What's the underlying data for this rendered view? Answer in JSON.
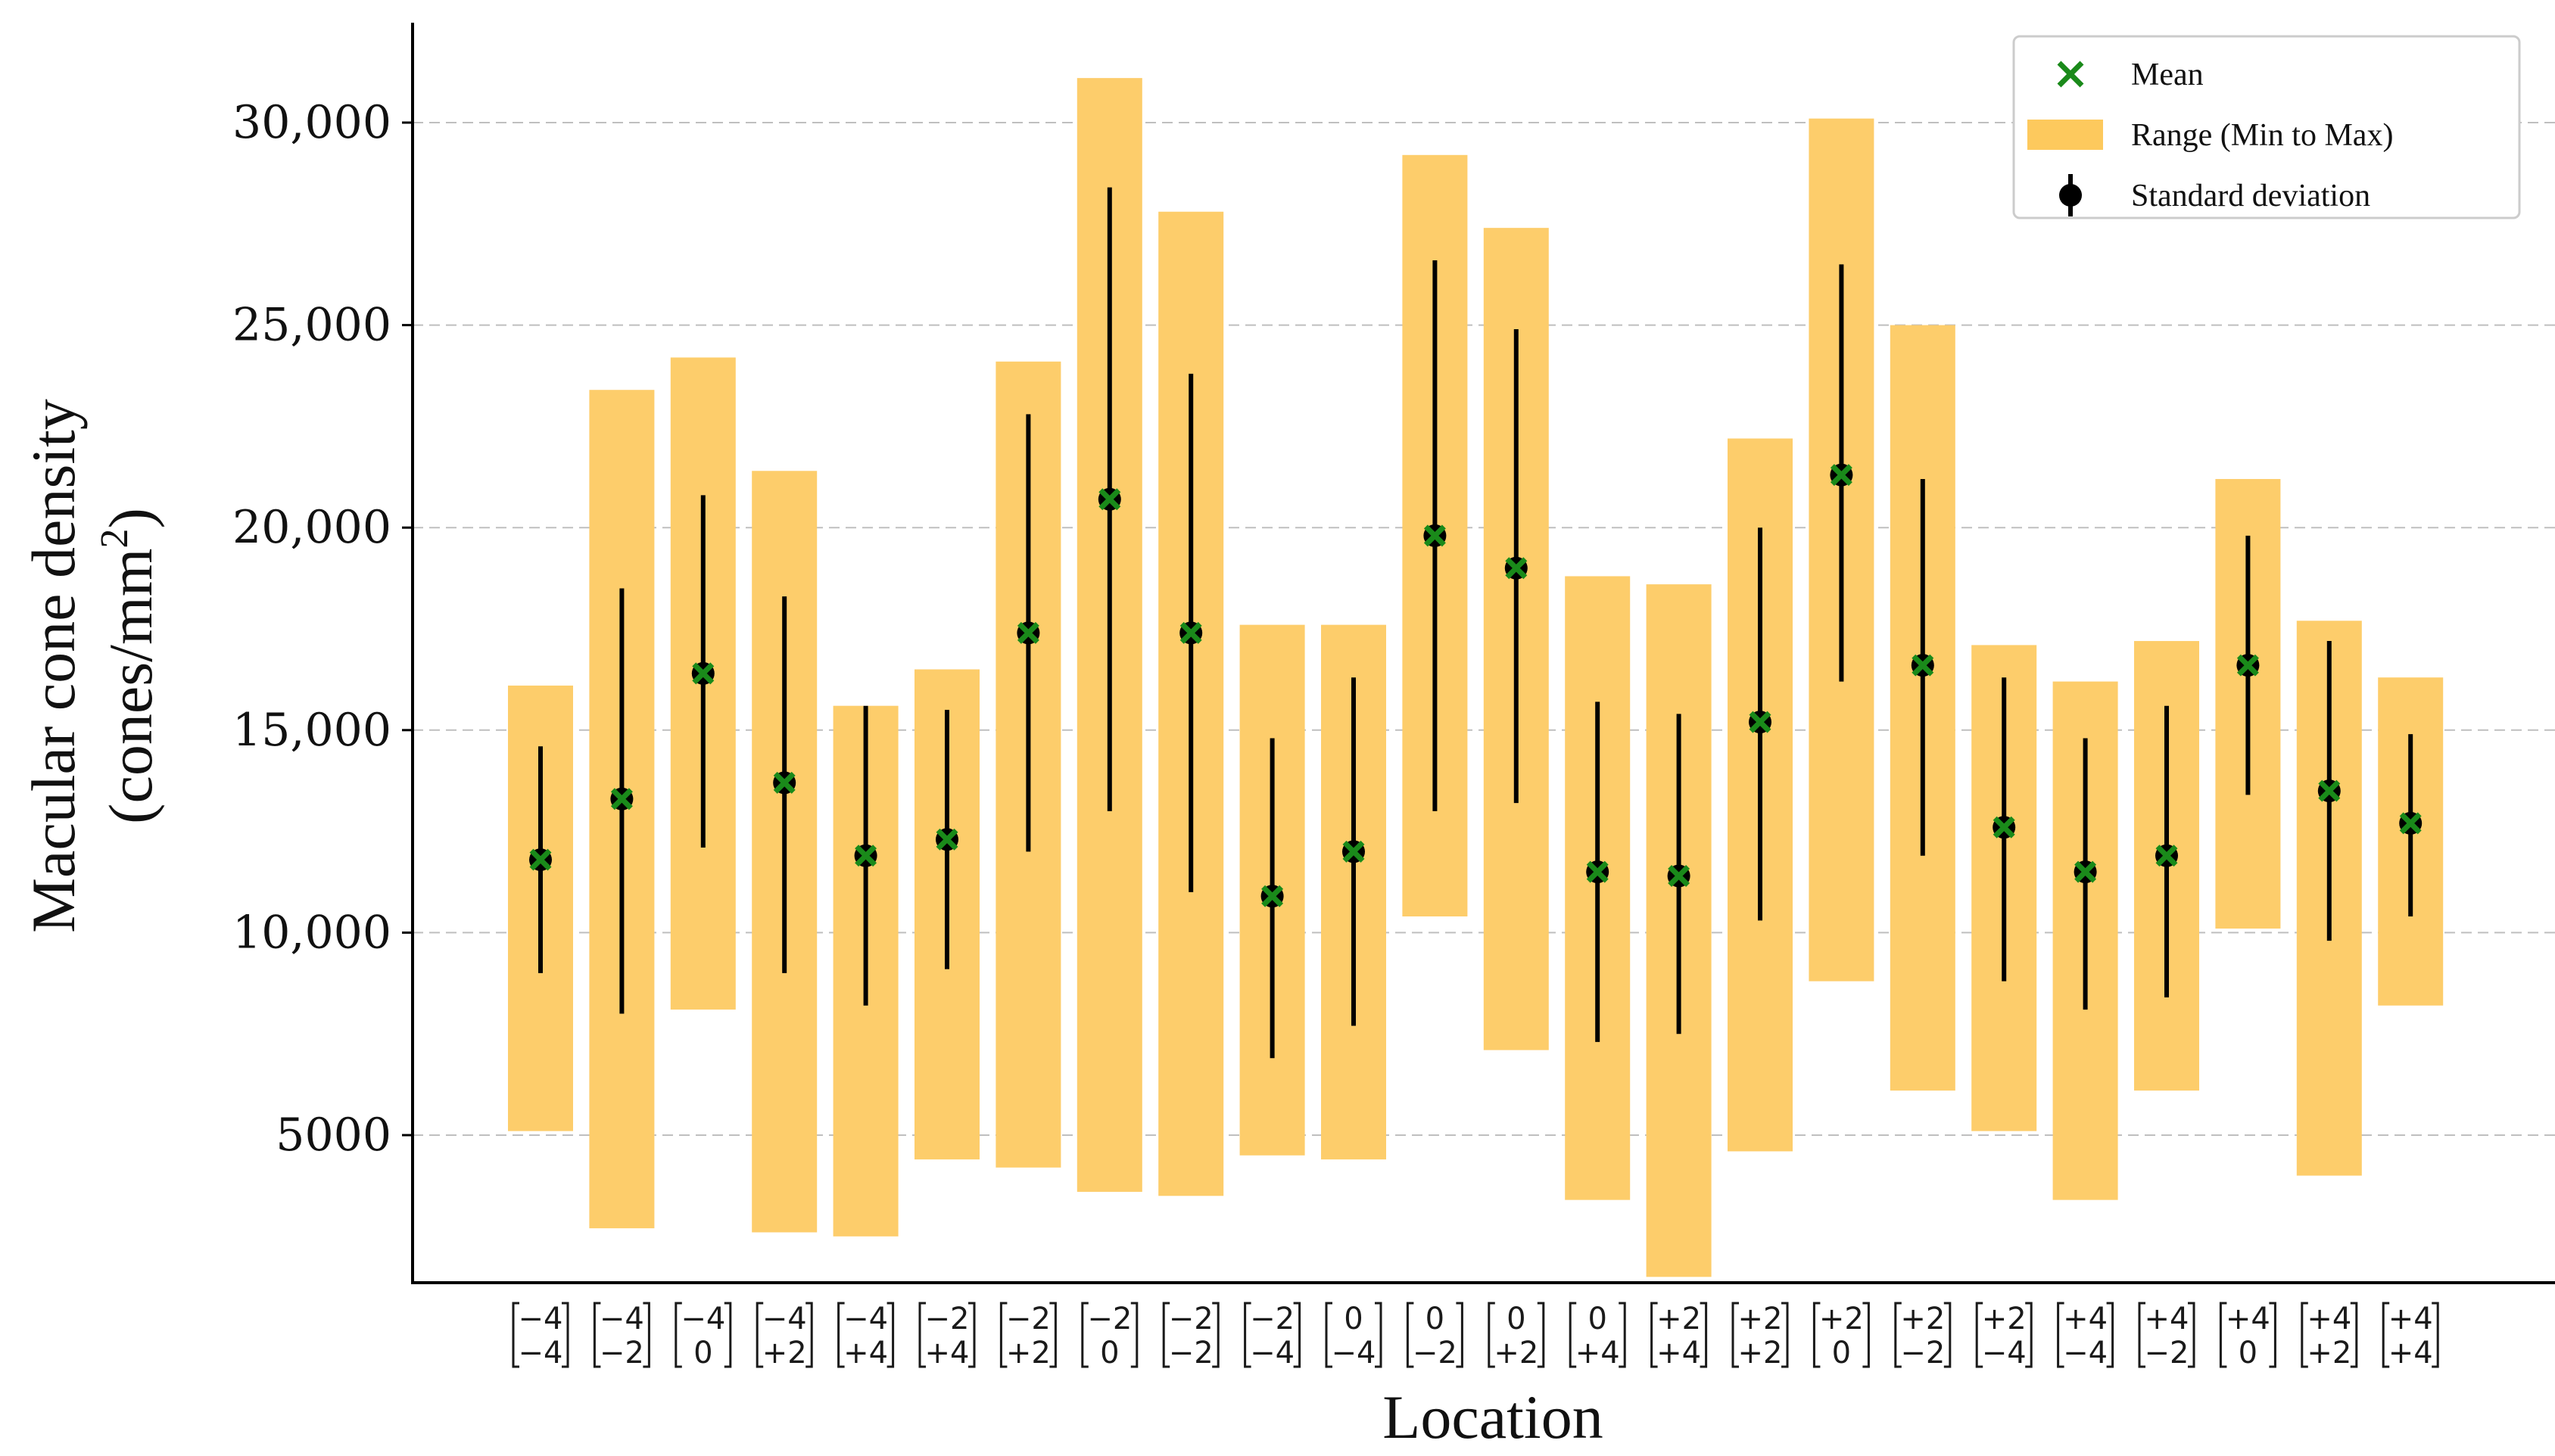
{
  "chart_data": {
    "type": "bar",
    "xlabel": "Location",
    "ylabel_line1": "Macular cone density",
    "ylabel_line2_prefix": "(cones/mm",
    "ylabel_line2_sup": "2",
    "ylabel_line2_suffix": ")",
    "ylim": [
      1500,
      32000
    ],
    "yticks": [
      5000,
      10000,
      15000,
      20000,
      25000,
      30000
    ],
    "ytick_labels": [
      "5000",
      "10,000",
      "15,000",
      "20,000",
      "25,000",
      "30,000"
    ],
    "grid": "horizontal dashed",
    "legend_position": "top-right",
    "legend": [
      {
        "label": "Mean",
        "kind": "x-marker",
        "color": "#1a8a1a"
      },
      {
        "label": "Range (Min to Max)",
        "kind": "bar",
        "color": "#fdc95d"
      },
      {
        "label": "Standard deviation",
        "kind": "errorbar",
        "color": "#000000"
      }
    ],
    "colors": {
      "range": "#fdcd6b",
      "mean": "#1a8a1a",
      "sd": "#000000"
    },
    "categories": [
      {
        "top": "−4",
        "bottom": "−4"
      },
      {
        "top": "−4",
        "bottom": "−2"
      },
      {
        "top": "−4",
        "bottom": "0"
      },
      {
        "top": "−4",
        "bottom": "+2"
      },
      {
        "top": "−4",
        "bottom": "+4"
      },
      {
        "top": "−2",
        "bottom": "+4"
      },
      {
        "top": "−2",
        "bottom": "+2"
      },
      {
        "top": "−2",
        "bottom": "0"
      },
      {
        "top": "−2",
        "bottom": "−2"
      },
      {
        "top": "−2",
        "bottom": "−4"
      },
      {
        "top": "0",
        "bottom": "−4"
      },
      {
        "top": "0",
        "bottom": "−2"
      },
      {
        "top": "0",
        "bottom": "+2"
      },
      {
        "top": "0",
        "bottom": "+4"
      },
      {
        "top": "+2",
        "bottom": "+4"
      },
      {
        "top": "+2",
        "bottom": "+2"
      },
      {
        "top": "+2",
        "bottom": "0"
      },
      {
        "top": "+2",
        "bottom": "−2"
      },
      {
        "top": "+2",
        "bottom": "−4"
      },
      {
        "top": "+4",
        "bottom": "−4"
      },
      {
        "top": "+4",
        "bottom": "−2"
      },
      {
        "top": "+4",
        "bottom": "0"
      },
      {
        "top": "+4",
        "bottom": "+2"
      },
      {
        "top": "+4",
        "bottom": "+4"
      }
    ],
    "series": [
      {
        "name": "Range (Min to Max)",
        "min": [
          5100,
          2700,
          8100,
          2600,
          2500,
          4400,
          4200,
          3600,
          3500,
          4500,
          4400,
          10400,
          7100,
          3400,
          1500,
          4600,
          8800,
          6100,
          5100,
          3400,
          6100,
          10100,
          4000,
          8200
        ],
        "max": [
          16100,
          23400,
          24200,
          21400,
          15600,
          16500,
          24100,
          31100,
          27800,
          17600,
          17600,
          29200,
          27400,
          18800,
          18600,
          22200,
          30100,
          25000,
          17100,
          16200,
          17200,
          21200,
          17700,
          16300
        ]
      },
      {
        "name": "Mean",
        "values": [
          11800,
          13300,
          16400,
          13700,
          11900,
          12300,
          17400,
          20700,
          17400,
          10900,
          12000,
          19800,
          19000,
          11500,
          11400,
          15200,
          21300,
          16600,
          12600,
          11500,
          11900,
          16600,
          13500,
          12700
        ]
      },
      {
        "name": "Standard deviation",
        "low": [
          9000,
          8000,
          12100,
          9000,
          8200,
          9100,
          12000,
          13000,
          11000,
          6900,
          7700,
          13000,
          13200,
          7300,
          7500,
          10300,
          16200,
          11900,
          8800,
          8100,
          8400,
          13400,
          9800,
          10400
        ],
        "high": [
          14600,
          18500,
          20800,
          18300,
          15600,
          15500,
          22800,
          28400,
          23800,
          14800,
          16300,
          26600,
          24900,
          15700,
          15400,
          20000,
          26500,
          21200,
          16300,
          14800,
          15600,
          19800,
          17200,
          14900
        ]
      }
    ]
  }
}
